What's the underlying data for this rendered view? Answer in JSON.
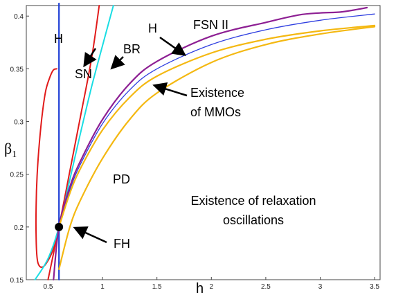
{
  "chart_data": {
    "type": "line",
    "title": "",
    "xlabel": "h",
    "ylabel": "β",
    "ylabel_subscript": "1",
    "xlim": [
      0.3,
      3.55
    ],
    "ylim": [
      0.15,
      0.41
    ],
    "x_ticks": [
      {
        "v": 0.5,
        "label": "0.5"
      },
      {
        "v": 1,
        "label": "1"
      },
      {
        "v": 1.5,
        "label": "1.5"
      },
      {
        "v": 2,
        "label": "2"
      },
      {
        "v": 2.5,
        "label": "2.5"
      },
      {
        "v": 3,
        "label": "3"
      },
      {
        "v": 3.5,
        "label": "3.5"
      }
    ],
    "y_ticks": [
      {
        "v": 0.15,
        "label": "0.15"
      },
      {
        "v": 0.2,
        "label": "0.2"
      },
      {
        "v": 0.25,
        "label": "0.25"
      },
      {
        "v": 0.3,
        "label": "0.3"
      },
      {
        "v": 0.35,
        "label": "0.35"
      },
      {
        "v": 0.4,
        "label": "0.4"
      }
    ],
    "series": [
      {
        "key": "h-vertical",
        "color": "#1f3fd6",
        "width": 2.2,
        "x": [
          0.6,
          0.6
        ],
        "y": [
          0.15,
          0.412
        ]
      },
      {
        "key": "sn-left",
        "color": "#e11b1b",
        "width": 2,
        "x": [
          0.58,
          0.55,
          0.52,
          0.48,
          0.45,
          0.42,
          0.4,
          0.39,
          0.39,
          0.4,
          0.42,
          0.45,
          0.48,
          0.52,
          0.55,
          0.58,
          0.6
        ],
        "y": [
          0.35,
          0.349,
          0.343,
          0.33,
          0.31,
          0.28,
          0.25,
          0.22,
          0.19,
          0.17,
          0.163,
          0.162,
          0.165,
          0.172,
          0.18,
          0.19,
          0.2
        ]
      },
      {
        "key": "sn-right",
        "color": "#e11b1b",
        "width": 2,
        "x": [
          0.6,
          0.7,
          0.8,
          0.9,
          0.97
        ],
        "y": [
          0.2,
          0.253,
          0.306,
          0.36,
          0.41
        ]
      },
      {
        "key": "sn-low",
        "color": "#e11b1b",
        "width": 2,
        "x": [
          0.5,
          0.55,
          0.6
        ],
        "y": [
          0.15,
          0.175,
          0.2
        ]
      },
      {
        "key": "br",
        "color": "#19dde3",
        "width": 2,
        "x": [
          0.38,
          0.5,
          0.6,
          0.7,
          0.8,
          0.9,
          1.0,
          1.1
        ],
        "y": [
          0.15,
          0.17,
          0.2,
          0.245,
          0.29,
          0.333,
          0.372,
          0.41
        ]
      },
      {
        "key": "h-fsn",
        "color": "#2f3fe0",
        "width": 1.3,
        "x": [
          0.55,
          0.6,
          0.7,
          0.8,
          1.0,
          1.25,
          1.5,
          2.0,
          2.5,
          3.0,
          3.5
        ],
        "y": [
          0.15,
          0.2,
          0.235,
          0.26,
          0.298,
          0.33,
          0.35,
          0.373,
          0.387,
          0.396,
          0.402
        ]
      },
      {
        "key": "fsn2",
        "color": "#8d1f93",
        "width": 2.2,
        "x": [
          0.55,
          0.6,
          0.7,
          0.8,
          1.0,
          1.25,
          1.5,
          2.0,
          2.5,
          2.8,
          3.0,
          3.2,
          3.43
        ],
        "y": [
          0.15,
          0.2,
          0.238,
          0.263,
          0.302,
          0.336,
          0.357,
          0.381,
          0.394,
          0.401,
          0.403,
          0.404,
          0.408
        ]
      },
      {
        "key": "mmo-upper",
        "color": "#f4b811",
        "width": 2.2,
        "x": [
          0.6,
          0.7,
          0.8,
          1.0,
          1.25,
          1.5,
          2.0,
          2.5,
          3.0,
          3.5
        ],
        "y": [
          0.2,
          0.232,
          0.256,
          0.292,
          0.323,
          0.343,
          0.365,
          0.378,
          0.386,
          0.391
        ]
      },
      {
        "key": "mmo-lower",
        "color": "#f4b811",
        "width": 2.2,
        "x": [
          0.6,
          0.7,
          0.8,
          1.0,
          1.25,
          1.5,
          2.0,
          2.5,
          3.0,
          3.5
        ],
        "y": [
          0.16,
          0.2,
          0.226,
          0.265,
          0.302,
          0.327,
          0.356,
          0.373,
          0.383,
          0.39
        ]
      }
    ],
    "point": {
      "label": "FH",
      "x": 0.6,
      "y": 0.2
    }
  },
  "annotations": {
    "h_left": "H",
    "sn": "SN",
    "br": "BR",
    "h_right": "H",
    "fsn": "FSN II",
    "mmo_line1": "Existence",
    "mmo_line2": "of MMOs",
    "pd": "PD",
    "relax_line1": "Existence of relaxation",
    "relax_line2": "oscillations",
    "fh": "FH"
  }
}
